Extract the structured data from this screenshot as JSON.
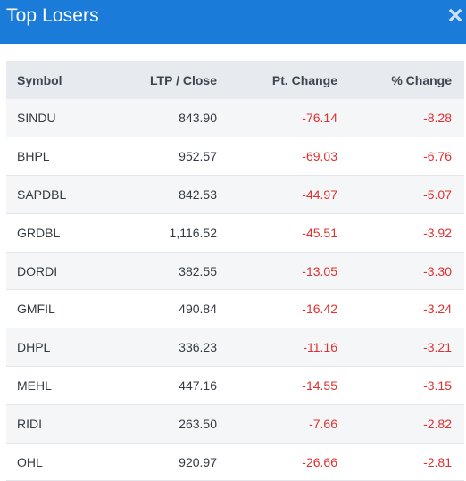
{
  "header": {
    "title": "Top Losers",
    "close_icon": "close-icon"
  },
  "colors": {
    "header_bg": "#1a7bd9",
    "negative": "#e03030",
    "table_header_bg": "#e7eaee"
  },
  "table": {
    "columns": [
      "Symbol",
      "LTP / Close",
      "Pt. Change",
      "% Change"
    ],
    "rows": [
      {
        "symbol": "SINDU",
        "ltp": "843.90",
        "pt_change": "-76.14",
        "pct_change": "-8.28"
      },
      {
        "symbol": "BHPL",
        "ltp": "952.57",
        "pt_change": "-69.03",
        "pct_change": "-6.76"
      },
      {
        "symbol": "SAPDBL",
        "ltp": "842.53",
        "pt_change": "-44.97",
        "pct_change": "-5.07"
      },
      {
        "symbol": "GRDBL",
        "ltp": "1,116.52",
        "pt_change": "-45.51",
        "pct_change": "-3.92"
      },
      {
        "symbol": "DORDI",
        "ltp": "382.55",
        "pt_change": "-13.05",
        "pct_change": "-3.30"
      },
      {
        "symbol": "GMFIL",
        "ltp": "490.84",
        "pt_change": "-16.42",
        "pct_change": "-3.24"
      },
      {
        "symbol": "DHPL",
        "ltp": "336.23",
        "pt_change": "-11.16",
        "pct_change": "-3.21"
      },
      {
        "symbol": "MEHL",
        "ltp": "447.16",
        "pt_change": "-14.55",
        "pct_change": "-3.15"
      },
      {
        "symbol": "RIDI",
        "ltp": "263.50",
        "pt_change": "-7.66",
        "pct_change": "-2.82"
      },
      {
        "symbol": "OHL",
        "ltp": "920.97",
        "pt_change": "-26.66",
        "pct_change": "-2.81"
      }
    ]
  }
}
